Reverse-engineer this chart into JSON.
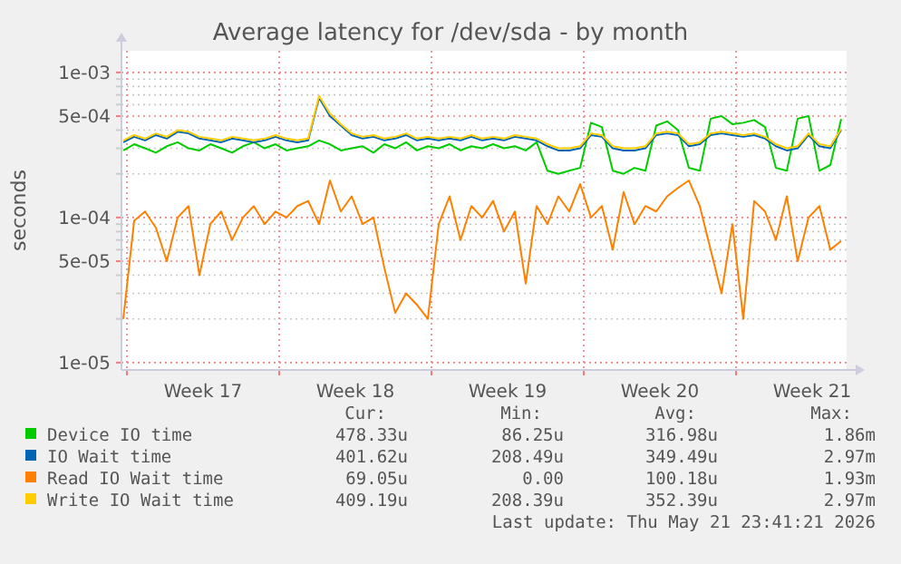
{
  "chart_data": {
    "type": "line",
    "title": "Average latency for /dev/sda - by month",
    "ylabel": "seconds",
    "log": true,
    "grid": true,
    "legend": "bottom",
    "xlim": [
      "2026-04-19T18:00",
      "2026-05-23T02:00"
    ],
    "xticks": [
      {
        "value": "2026-04-20T00:00",
        "label": null
      },
      {
        "value": "2026-04-27T00:00",
        "label": null
      },
      {
        "value": "2026-05-04T00:00",
        "label": null
      },
      {
        "value": "2026-05-11T00:00",
        "label": null
      },
      {
        "value": "2026-05-18T00:00",
        "label": null
      },
      {
        "value": "2026-04-23T12:00",
        "label": "Week 17"
      },
      {
        "value": "2026-04-30T12:00",
        "label": "Week 18"
      },
      {
        "value": "2026-05-07T12:00",
        "label": "Week 19"
      },
      {
        "value": "2026-05-14T12:00",
        "label": "Week 20"
      },
      {
        "value": "2026-05-21T12:00",
        "label": "Week 21"
      }
    ],
    "ylim": [
      8.9e-06,
      0.00141
    ],
    "yticks": [
      {
        "value": 1e-05,
        "label": "1e-05"
      },
      {
        "value": 2e-05,
        "label": null
      },
      {
        "value": 3e-05,
        "label": null
      },
      {
        "value": 4e-05,
        "label": null
      },
      {
        "value": 5e-05,
        "label": "5e-05"
      },
      {
        "value": 6e-05,
        "label": null
      },
      {
        "value": 7e-05,
        "label": null
      },
      {
        "value": 8e-05,
        "label": null
      },
      {
        "value": 9e-05,
        "label": null
      },
      {
        "value": 0.0001,
        "label": "1e-04"
      },
      {
        "value": 0.0002,
        "label": null
      },
      {
        "value": 0.0003,
        "label": null
      },
      {
        "value": 0.0004,
        "label": null
      },
      {
        "value": 0.0005,
        "label": "5e-04"
      },
      {
        "value": 0.0006,
        "label": null
      },
      {
        "value": 0.0007,
        "label": null
      },
      {
        "value": 0.0008,
        "label": null
      },
      {
        "value": 0.0009,
        "label": null
      },
      {
        "value": 0.001,
        "label": "1e-03"
      }
    ],
    "x": [
      "2026-04-19T20:00",
      "2026-04-20T08:00",
      "2026-04-20T20:00",
      "2026-04-21T08:00",
      "2026-04-21T20:00",
      "2026-04-22T08:00",
      "2026-04-22T20:00",
      "2026-04-23T08:00",
      "2026-04-23T20:00",
      "2026-04-24T08:00",
      "2026-04-24T20:00",
      "2026-04-25T08:00",
      "2026-04-25T20:00",
      "2026-04-26T08:00",
      "2026-04-26T20:00",
      "2026-04-27T08:00",
      "2026-04-27T20:00",
      "2026-04-28T08:00",
      "2026-04-28T20:00",
      "2026-04-29T08:00",
      "2026-04-29T20:00",
      "2026-04-30T08:00",
      "2026-04-30T20:00",
      "2026-05-01T08:00",
      "2026-05-01T20:00",
      "2026-05-02T08:00",
      "2026-05-02T20:00",
      "2026-05-03T08:00",
      "2026-05-03T20:00",
      "2026-05-04T08:00",
      "2026-05-04T20:00",
      "2026-05-05T08:00",
      "2026-05-05T20:00",
      "2026-05-06T08:00",
      "2026-05-06T20:00",
      "2026-05-07T08:00",
      "2026-05-07T20:00",
      "2026-05-08T08:00",
      "2026-05-08T20:00",
      "2026-05-09T08:00",
      "2026-05-09T20:00",
      "2026-05-10T08:00",
      "2026-05-10T20:00",
      "2026-05-11T08:00",
      "2026-05-11T20:00",
      "2026-05-12T08:00",
      "2026-05-12T20:00",
      "2026-05-13T08:00",
      "2026-05-13T20:00",
      "2026-05-14T08:00",
      "2026-05-14T20:00",
      "2026-05-15T08:00",
      "2026-05-15T20:00",
      "2026-05-16T08:00",
      "2026-05-16T20:00",
      "2026-05-17T08:00",
      "2026-05-17T20:00",
      "2026-05-18T08:00",
      "2026-05-18T20:00",
      "2026-05-19T08:00",
      "2026-05-19T20:00",
      "2026-05-20T08:00",
      "2026-05-20T20:00",
      "2026-05-21T08:00",
      "2026-05-21T20:00",
      "2026-05-22T08:00",
      "2026-05-22T20:00"
    ],
    "series": [
      {
        "name": "Device IO time",
        "color": "#00cc00",
        "values": [
          0.00029,
          0.00032,
          0.0003,
          0.00028,
          0.00031,
          0.00033,
          0.0003,
          0.00029,
          0.00032,
          0.0003,
          0.00028,
          0.00031,
          0.00033,
          0.0003,
          0.00032,
          0.00029,
          0.0003,
          0.00031,
          0.00034,
          0.00032,
          0.00029,
          0.0003,
          0.00031,
          0.00028,
          0.00032,
          0.0003,
          0.00033,
          0.00029,
          0.00031,
          0.0003,
          0.00032,
          0.00029,
          0.00031,
          0.0003,
          0.00032,
          0.0003,
          0.00031,
          0.00029,
          0.00033,
          0.00021,
          0.0002,
          0.00021,
          0.00022,
          0.00045,
          0.00042,
          0.00021,
          0.0002,
          0.00022,
          0.00021,
          0.00043,
          0.00046,
          0.0004,
          0.00022,
          0.00021,
          0.00048,
          0.0005,
          0.00044,
          0.00045,
          0.00047,
          0.00042,
          0.00022,
          0.00021,
          0.00048,
          0.0005,
          0.00021,
          0.00023,
          0.000478
        ]
      },
      {
        "name": "IO Wait time",
        "color": "#0066b3",
        "values": [
          0.00033,
          0.00036,
          0.00034,
          0.00037,
          0.00035,
          0.00039,
          0.00038,
          0.00035,
          0.00034,
          0.00033,
          0.00035,
          0.00034,
          0.00033,
          0.00034,
          0.00036,
          0.00034,
          0.00033,
          0.00034,
          0.00067,
          0.0005,
          0.00043,
          0.00037,
          0.00035,
          0.00036,
          0.00034,
          0.00035,
          0.00037,
          0.00034,
          0.00035,
          0.00034,
          0.00035,
          0.00034,
          0.00036,
          0.00034,
          0.00035,
          0.00034,
          0.00036,
          0.00035,
          0.00034,
          0.00031,
          0.00029,
          0.00029,
          0.0003,
          0.00037,
          0.00036,
          0.0003,
          0.00029,
          0.00029,
          0.0003,
          0.00037,
          0.00038,
          0.00037,
          0.00031,
          0.00032,
          0.00037,
          0.00038,
          0.00037,
          0.00036,
          0.00037,
          0.00035,
          0.00031,
          0.00029,
          0.0003,
          0.00037,
          0.00031,
          0.0003,
          0.000402
        ]
      },
      {
        "name": "Read IO Wait time",
        "color": "#ff8000",
        "values": [
          2e-05,
          9.5e-05,
          0.00011,
          8.5e-05,
          5e-05,
          0.0001,
          0.00012,
          4e-05,
          9e-05,
          0.00011,
          7e-05,
          0.0001,
          0.00012,
          9e-05,
          0.00011,
          0.0001,
          0.00012,
          0.00013,
          9e-05,
          0.00018,
          0.00011,
          0.00014,
          9e-05,
          0.0001,
          4.5e-05,
          2.2e-05,
          3e-05,
          2.5e-05,
          2e-05,
          9e-05,
          0.00014,
          7e-05,
          0.00012,
          0.0001,
          0.00013,
          8e-05,
          0.00011,
          3.5e-05,
          0.00012,
          9e-05,
          0.00014,
          0.00011,
          0.00017,
          0.0001,
          0.00012,
          6e-05,
          0.00015,
          9e-05,
          0.00012,
          0.00011,
          0.00014,
          0.00016,
          0.00018,
          0.00012,
          6e-05,
          3e-05,
          9e-05,
          2e-05,
          0.00013,
          0.00011,
          7e-05,
          0.00014,
          5e-05,
          0.0001,
          0.00012,
          6e-05,
          6.9e-05
        ]
      },
      {
        "name": "Write IO Wait time",
        "color": "#ffcc00",
        "values": [
          0.00034,
          0.00037,
          0.00035,
          0.00038,
          0.00036,
          0.0004,
          0.00039,
          0.00036,
          0.00035,
          0.00034,
          0.00036,
          0.00035,
          0.00034,
          0.00035,
          0.00037,
          0.00035,
          0.00034,
          0.00035,
          0.00069,
          0.00052,
          0.00044,
          0.00038,
          0.00036,
          0.00037,
          0.00035,
          0.00036,
          0.00038,
          0.00035,
          0.00036,
          0.00035,
          0.00036,
          0.00035,
          0.00037,
          0.00035,
          0.00036,
          0.00035,
          0.00037,
          0.00036,
          0.00035,
          0.00032,
          0.0003,
          0.0003,
          0.00031,
          0.00038,
          0.00037,
          0.00031,
          0.0003,
          0.0003,
          0.00031,
          0.00038,
          0.00039,
          0.00038,
          0.00032,
          0.00033,
          0.00038,
          0.00039,
          0.00038,
          0.00037,
          0.00038,
          0.00036,
          0.00032,
          0.0003,
          0.00031,
          0.00038,
          0.00032,
          0.00031,
          0.000409
        ]
      }
    ],
    "annotations": [
      "Cur:",
      "Min:",
      "Avg:",
      "Max:",
      "478.33u",
      "86.25u",
      "316.98u",
      "1.86m",
      "401.62u",
      "208.49u",
      "349.49u",
      "2.97m",
      "69.05u",
      "0.00",
      "100.18u",
      "1.93m",
      "409.19u",
      "208.39u",
      "352.39u",
      "2.97m",
      "Last update: Thu May 21 23:41:21 2026"
    ]
  }
}
